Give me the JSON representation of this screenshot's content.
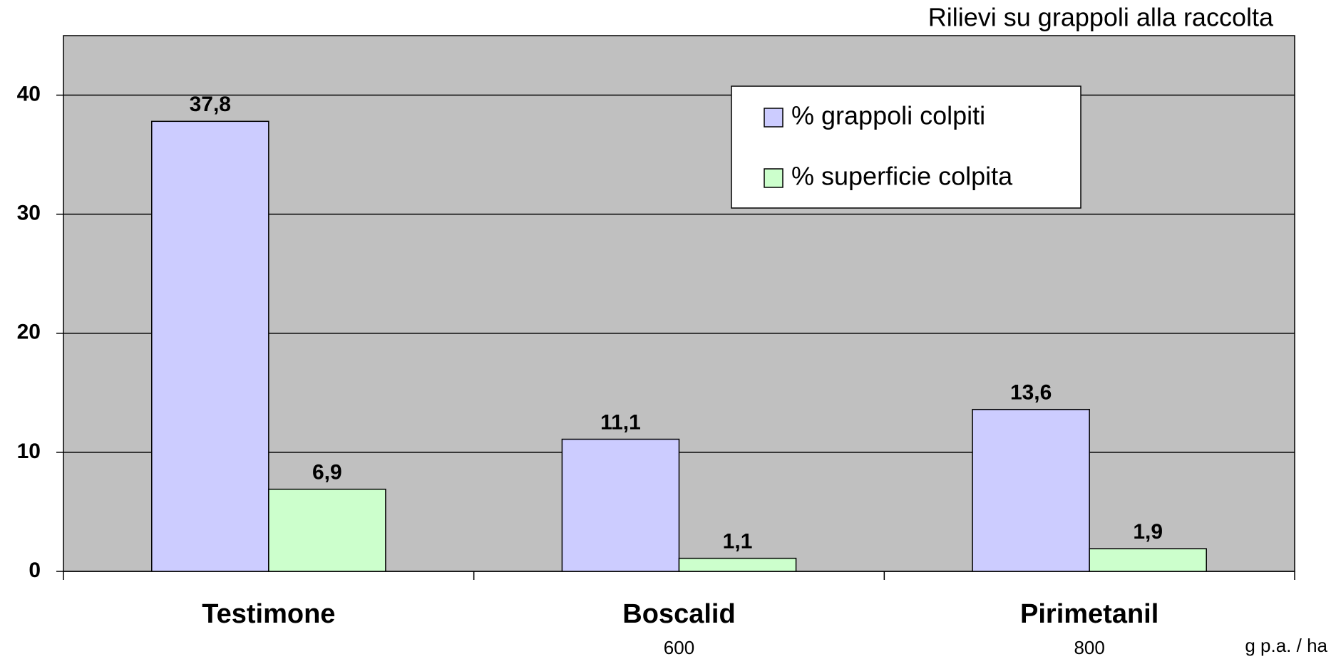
{
  "chart_data": {
    "type": "bar",
    "title": "Rilievi su grappoli alla raccolta",
    "categories": [
      "Testimone",
      "Boscalid",
      "Pirimetanil"
    ],
    "sublabels": [
      null,
      "600",
      "800"
    ],
    "unit_label": "g p.a. / ha",
    "series": [
      {
        "name": "% grappoli colpiti",
        "color": "#ccccff",
        "values": [
          37.8,
          11.1,
          13.6
        ],
        "value_labels": [
          "37,8",
          "11,1",
          "13,6"
        ]
      },
      {
        "name": "% superficie colpita",
        "color": "#ccffcc",
        "values": [
          6.9,
          1.1,
          1.9
        ],
        "value_labels": [
          "6,9",
          "1,1",
          "1,9"
        ]
      }
    ],
    "ylim": [
      0,
      45
    ],
    "yticks": [
      0,
      10,
      20,
      30,
      40
    ],
    "grid": true,
    "plot_background": "#c0c0c0",
    "legend": "top-right"
  }
}
